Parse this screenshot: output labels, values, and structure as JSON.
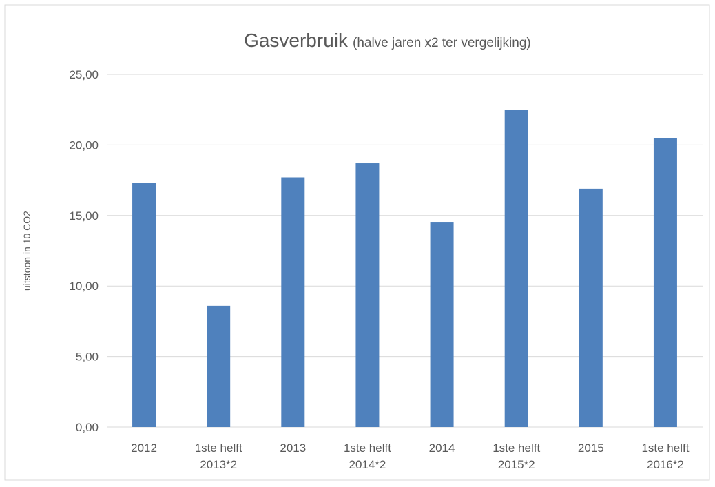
{
  "chart_data": {
    "type": "bar",
    "title": "Gasverbruik",
    "subtitle": "(halve jaren x2 ter vergelijking)",
    "y_axis_label": "uitstoon in 10 CO2",
    "categories": [
      "2012",
      "1ste helft 2013*2",
      "2013",
      "1ste helft 2014*2",
      "2014",
      "1ste helft 2015*2",
      "2015",
      "1ste helft 2016*2"
    ],
    "values": [
      17.3,
      8.6,
      17.7,
      18.7,
      14.5,
      22.5,
      16.9,
      20.5
    ],
    "color": "#4f81bd",
    "ylim": [
      0,
      25
    ],
    "yticks": [
      {
        "value": 0,
        "label": "0,00"
      },
      {
        "value": 5,
        "label": "5,00"
      },
      {
        "value": 10,
        "label": "10,00"
      },
      {
        "value": 15,
        "label": "15,00"
      },
      {
        "value": 20,
        "label": "20,00"
      },
      {
        "value": 25,
        "label": "25,00"
      }
    ],
    "grid": true
  }
}
